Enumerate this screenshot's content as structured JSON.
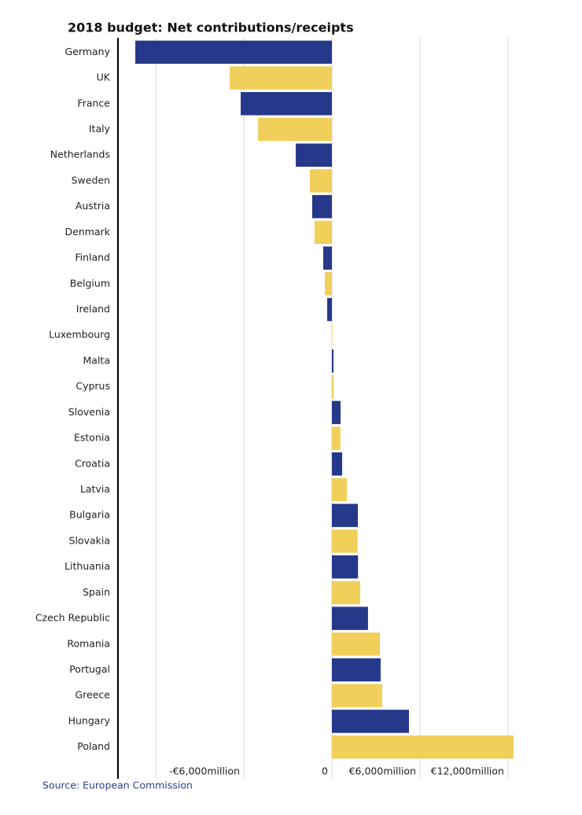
{
  "chart_data": {
    "type": "barh",
    "title": "2018 budget: Net contributions/receipts",
    "source": "Source: European Commission",
    "categories": [
      "Germany",
      "UK",
      "France",
      "Italy",
      "Netherlands",
      "Sweden",
      "Austria",
      "Denmark",
      "Finland",
      "Belgium",
      "Ireland",
      "Luxembourg",
      "Malta",
      "Cyprus",
      "Slovenia",
      "Estonia",
      "Croatia",
      "Latvia",
      "Bulgaria",
      "Slovakia",
      "Lithuania",
      "Spain",
      "Czech Republic",
      "Romania",
      "Portugal",
      "Greece",
      "Hungary",
      "Poland"
    ],
    "values": [
      -13390,
      -6960,
      -6210,
      -5030,
      -2460,
      -1500,
      -1340,
      -1180,
      -590,
      -480,
      -320,
      30,
      110,
      120,
      590,
      580,
      700,
      1020,
      1770,
      1750,
      1780,
      1930,
      2460,
      3270,
      3320,
      3430,
      5250,
      12370
    ],
    "bar_colors": [
      "#25388a",
      "#f0cf5b"
    ],
    "xlim": [
      -14570,
      12750
    ],
    "xticks": [
      {
        "value": -6000,
        "label": "-€6,000million"
      },
      0,
      {
        "value": 6000,
        "label": "€6,000million"
      },
      {
        "value": 12000,
        "label": "€12,000million"
      }
    ],
    "gridlines": [
      -12000,
      -6000,
      0,
      6000,
      12000
    ],
    "grid": true
  }
}
